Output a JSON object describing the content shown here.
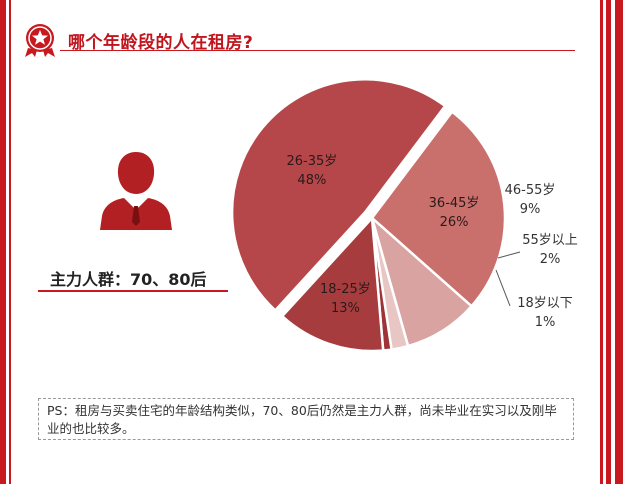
{
  "title": "哪个年龄段的人在租房?",
  "main_group": "主力人群：70、80后",
  "ps_text": "PS：租房与买卖住宅的年龄结构类似，70、80后仍然是主力人群，尚未毕业在实习以及刚毕业的也比较多。",
  "colors": {
    "accent": "#c8191e",
    "person_icon": "#b32024"
  },
  "icons": {
    "badge": "star-badge-icon",
    "person": "person-icon"
  },
  "chart_data": {
    "type": "pie",
    "slices": [
      {
        "label": "36-45岁",
        "value": 26,
        "value_label": "26%",
        "color": "#c96f6c"
      },
      {
        "label": "46-55岁",
        "value": 9,
        "value_label": "9%",
        "color": "#d9a3a1"
      },
      {
        "label": "55岁以上",
        "value": 2,
        "value_label": "2%",
        "color": "#e8c6c4"
      },
      {
        "label": "18岁以下",
        "value": 1,
        "value_label": "1%",
        "color": "#9e3437"
      },
      {
        "label": "18-25岁",
        "value": 13,
        "value_label": "13%",
        "color": "#a73c3e"
      },
      {
        "label": "26-35岁",
        "value": 48,
        "value_label": "48%",
        "color": "#b5474a"
      }
    ]
  }
}
